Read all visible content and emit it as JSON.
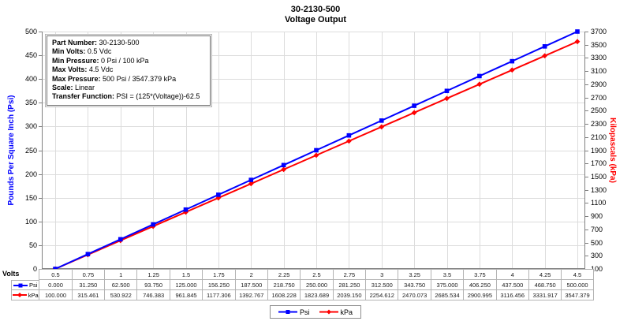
{
  "title": {
    "line1": "30-2130-500",
    "line2": "Voltage Output"
  },
  "info_box": {
    "rows": [
      {
        "label": "Part Number:",
        "value": "30-2130-500"
      },
      {
        "label": "Min Volts:",
        "value": "0.5 Vdc"
      },
      {
        "label": "Min Pressure:",
        "value": "0 Psi / 100 kPa"
      },
      {
        "label": "Max Volts:",
        "value": "4.5 Vdc"
      },
      {
        "label": "Max Pressure:",
        "value": "500 Psi / 3547.379 kPa"
      },
      {
        "label": "Scale:",
        "value": "Linear"
      },
      {
        "label": "Transfer Function:",
        "value": "PSI = (125*(Voltage))-62.5"
      }
    ]
  },
  "chart_data": {
    "type": "line",
    "title": "30-2130-500 Voltage Output",
    "x_axis": {
      "label": "Volts",
      "tick_labels": [
        "0.5",
        "0.75",
        "1",
        "1.25",
        "1.5",
        "1.75",
        "2",
        "2.25",
        "2.5",
        "2.75",
        "3",
        "3.25",
        "3.5",
        "3.75",
        "4",
        "4.25",
        "4.5"
      ]
    },
    "x": [
      0.5,
      0.75,
      1,
      1.25,
      1.5,
      1.75,
      2,
      2.25,
      2.5,
      2.75,
      3,
      3.25,
      3.5,
      3.75,
      4,
      4.25,
      4.5
    ],
    "left_axis": {
      "label": "Pounds Per Square Inch (Psi)",
      "min": 0,
      "max": 500,
      "step": 50,
      "color": "#0000ff"
    },
    "right_axis": {
      "label": "Kilopascals (kPa)",
      "min": 100,
      "max": 3700,
      "step": 200,
      "color": "#ff0000"
    },
    "grid": true,
    "legend_position": "bottom",
    "series": [
      {
        "name": "Psi",
        "axis": "left",
        "color": "#0000ff",
        "marker": "square",
        "values": [
          0,
          31.25,
          62.5,
          93.75,
          125,
          156.25,
          187.5,
          218.75,
          250,
          281.25,
          312.5,
          343.75,
          375,
          406.25,
          437.5,
          468.75,
          500
        ]
      },
      {
        "name": "kPa",
        "axis": "right",
        "color": "#ff0000",
        "marker": "diamond",
        "values": [
          100,
          315.461,
          530.922,
          746.383,
          961.845,
          1177.306,
          1392.767,
          1608.228,
          1823.689,
          2039.15,
          2254.612,
          2470.073,
          2685.534,
          2900.995,
          3116.456,
          3331.917,
          3547.379
        ]
      }
    ]
  },
  "data_table": {
    "volts_row": [
      "0.5",
      "0.75",
      "1",
      "1.25",
      "1.5",
      "1.75",
      "2",
      "2.25",
      "2.5",
      "2.75",
      "3",
      "3.25",
      "3.5",
      "3.75",
      "4",
      "4.25",
      "4.5"
    ],
    "rows": [
      {
        "key": "Psi",
        "color": "#0000ff",
        "marker": "square",
        "values": [
          "0.000",
          "31.250",
          "62.500",
          "93.750",
          "125.000",
          "156.250",
          "187.500",
          "218.750",
          "250.000",
          "281.250",
          "312.500",
          "343.750",
          "375.000",
          "406.250",
          "437.500",
          "468.750",
          "500.000"
        ]
      },
      {
        "key": "kPa",
        "color": "#ff0000",
        "marker": "diamond",
        "values": [
          "100.000",
          "315.461",
          "530.922",
          "746.383",
          "961.845",
          "1177.306",
          "1392.767",
          "1608.228",
          "1823.689",
          "2039.150",
          "2254.612",
          "2470.073",
          "2685.534",
          "2900.995",
          "3116.456",
          "3331.917",
          "3547.379"
        ]
      }
    ]
  },
  "legend": {
    "items": [
      {
        "label": "Psi",
        "color": "#0000ff",
        "marker": "square"
      },
      {
        "label": "kPa",
        "color": "#ff0000",
        "marker": "diamond"
      }
    ]
  },
  "colors": {
    "grid": "#dcdcdc",
    "axis": "#808080",
    "table_border": "#b3b3b3",
    "psi": "#0000ff",
    "kpa": "#ff0000"
  }
}
